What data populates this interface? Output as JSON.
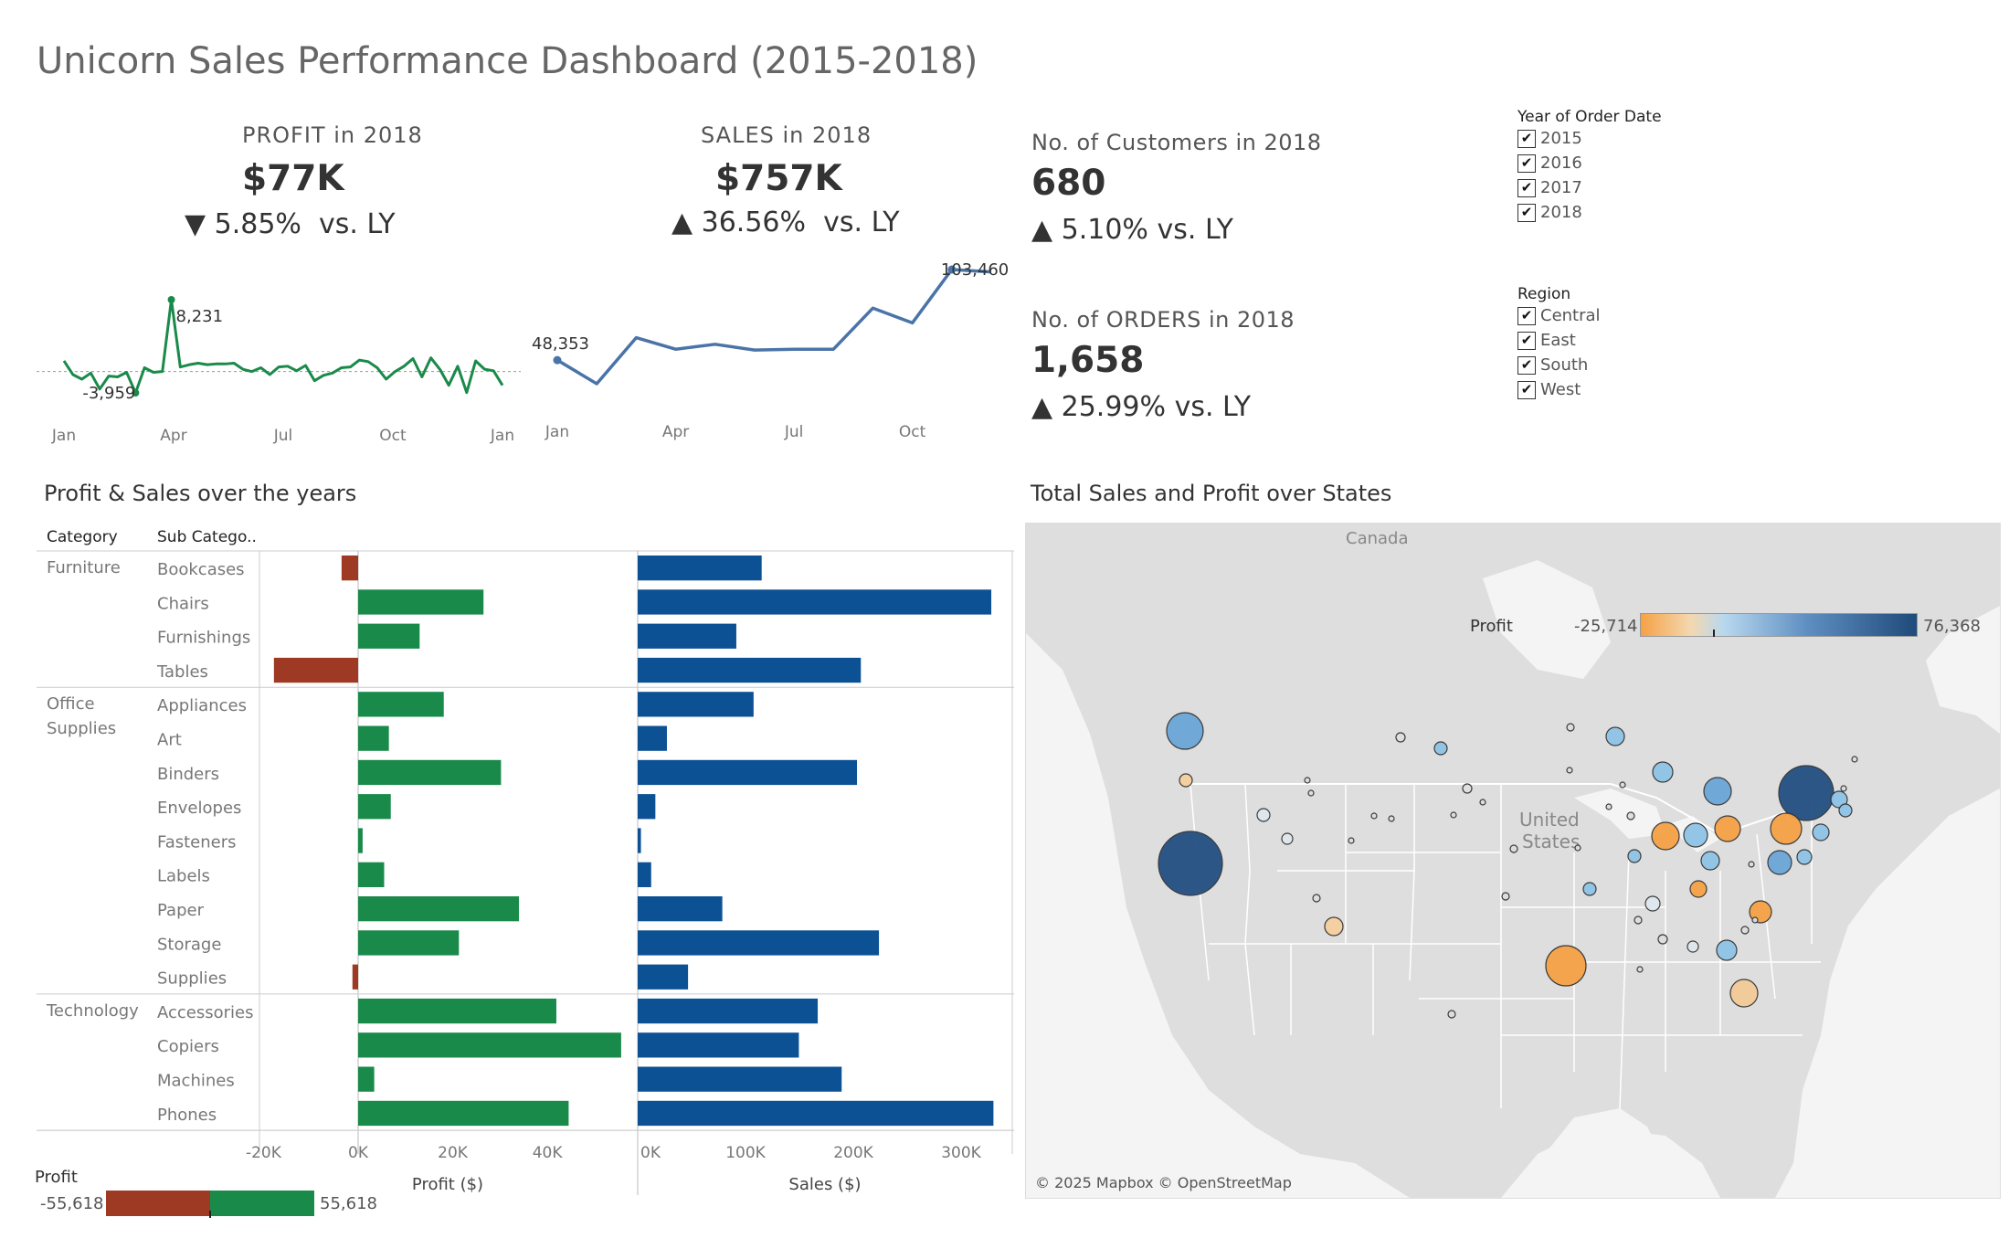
{
  "title": "Unicorn Sales Performance Dashboard (2015-2018)",
  "kpis": {
    "profit": {
      "label": "PROFIT  in  2018",
      "value": "$77K",
      "delta": "5.85%",
      "direction": "down",
      "delta_suffix": "vs.",
      "delta_ly": "LY"
    },
    "sales": {
      "label": "SALES  in  2018",
      "value": "$757K",
      "delta": "36.56%",
      "direction": "up",
      "delta_suffix": "vs.",
      "delta_ly": "LY"
    },
    "customers": {
      "label": "No. of  Customers in 2018",
      "value": "680",
      "delta": "5.10%",
      "direction": "up",
      "delta_suffix": "vs.",
      "delta_ly": "LY"
    },
    "orders": {
      "label": "No. of ORDERS in 2018",
      "value": "1,658",
      "delta": "25.99%",
      "direction": "up",
      "delta_suffix": "vs.",
      "delta_ly": "LY"
    }
  },
  "filters": {
    "year": {
      "title": "Year of Order Date",
      "options": [
        "2015",
        "2016",
        "2017",
        "2018"
      ]
    },
    "region": {
      "title": "Region",
      "options": [
        "Central",
        "East",
        "South",
        "West"
      ]
    }
  },
  "profit_spark": {
    "color": "#1a8a4a",
    "values": [
      200,
      -1600,
      -2200,
      -1400,
      -3500,
      -1800,
      -1900,
      -1300,
      -4000,
      -700,
      -1300,
      -1200,
      8231,
      -600,
      -300,
      -100,
      -300,
      -200,
      -200,
      -100,
      -900,
      -1200,
      -700,
      -1600,
      -600,
      -500,
      -1100,
      -400,
      -2400,
      -1700,
      -1400,
      -700,
      -600,
      300,
      100,
      -700,
      -2200,
      -1200,
      -500,
      500,
      -1900,
      600,
      -900,
      -3000,
      -500,
      -3959,
      200,
      -900,
      -1100,
      -3000
    ],
    "ticks": [
      "Jan",
      "Apr",
      "Jul",
      "Oct",
      "Jan"
    ],
    "max_label": "8,231",
    "min_label": "-3,959"
  },
  "sales_spark": {
    "color": "#4a74a8",
    "values": [
      48353,
      34000,
      62000,
      55000,
      58000,
      54500,
      55000,
      55000,
      80000,
      71000,
      103460,
      102000
    ],
    "ticks": [
      "Jan",
      "Apr",
      "Jul",
      "Oct"
    ],
    "first_label": "48,353",
    "last_label": "103,460"
  },
  "profit_sales_section": {
    "title": "Profit & Sales over the years",
    "col_category": "Category",
    "col_subcategory": "Sub Catego..",
    "profit_axis_title": "Profit ($)",
    "sales_axis_title": "Sales ($)",
    "profit_ticks": [
      "-20K",
      "0K",
      "20K",
      "40K"
    ],
    "sales_ticks": [
      "0K",
      "100K",
      "200K",
      "300K"
    ]
  },
  "chart_data": {
    "type": "bar",
    "title": "Profit & Sales over the years",
    "xlabel": "",
    "ylabel": "",
    "groups": [
      {
        "category": "Furniture",
        "subcategories": [
          "Bookcases",
          "Chairs",
          "Furnishings",
          "Tables"
        ],
        "profit": [
          -3500,
          26500,
          13000,
          -17800
        ],
        "sales": [
          115000,
          328000,
          91500,
          207000
        ]
      },
      {
        "category": "Office Supplies",
        "subcategories": [
          "Appliances",
          "Art",
          "Binders",
          "Envelopes",
          "Fasteners",
          "Labels",
          "Paper",
          "Storage",
          "Supplies"
        ],
        "profit": [
          18100,
          6500,
          30200,
          6900,
          950,
          5500,
          34000,
          21300,
          -1200
        ],
        "sales": [
          107500,
          27100,
          203400,
          16400,
          3000,
          12500,
          78500,
          223800,
          46700
        ]
      },
      {
        "category": "Technology",
        "subcategories": [
          "Accessories",
          "Copiers",
          "Machines",
          "Phones"
        ],
        "profit": [
          41900,
          55600,
          3400,
          44500
        ],
        "sales": [
          167000,
          149500,
          189200,
          330000
        ]
      }
    ],
    "series": [
      {
        "name": "Profit ($)"
      },
      {
        "name": "Sales ($)"
      }
    ],
    "profit_range": [
      -20000,
      55618
    ],
    "sales_range": [
      0,
      340000
    ]
  },
  "profit_legend": {
    "title": "Profit",
    "min": "-55,618",
    "max": "55,618",
    "neg_color": "#9e3a24",
    "pos_color": "#1a8a4a"
  },
  "map": {
    "title": "Total Sales and Profit over States",
    "canada_label": "Canada",
    "us_label_1": "United",
    "us_label_2": "States",
    "legend_title": "Profit",
    "legend_min": "-25,714",
    "legend_max": "76,368",
    "attribution": "© 2025 Mapbox © OpenStreetMap"
  },
  "colors": {
    "profit_pos": "#1a8a4a",
    "profit_neg": "#9e3a24",
    "sales": "#0d5195",
    "map_orange": "#f5a145",
    "map_blue_light": "#8ec3e6",
    "map_blue_dark": "#234f82"
  }
}
